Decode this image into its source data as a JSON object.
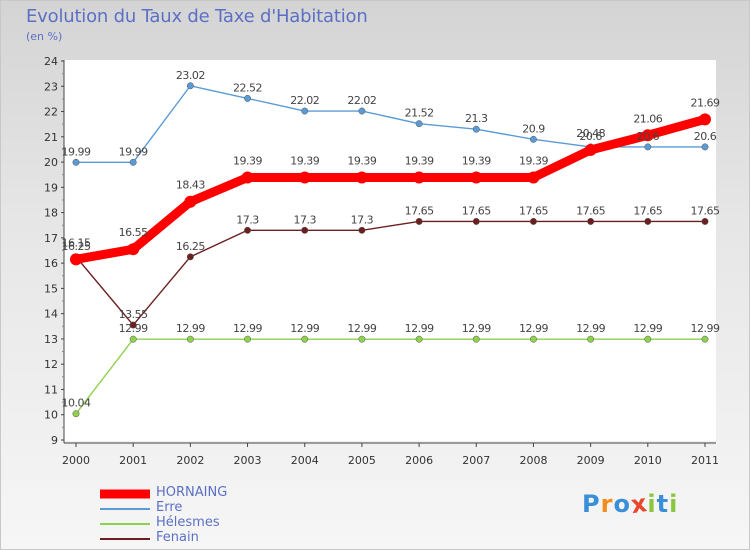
{
  "chart_data": {
    "type": "line",
    "title": "Evolution du Taux de Taxe d'Habitation",
    "ylabel": "(en %)",
    "xlabel": "",
    "x": [
      "2000",
      "2001",
      "2002",
      "2003",
      "2004",
      "2005",
      "2006",
      "2007",
      "2008",
      "2009",
      "2010",
      "2011"
    ],
    "ylim": [
      9,
      24
    ],
    "yticks": [
      "9",
      "10",
      "11",
      "12",
      "13",
      "14",
      "15",
      "16",
      "17",
      "18",
      "19",
      "20",
      "21",
      "22",
      "23",
      "24"
    ],
    "grid": false,
    "legend_position": "bottom-left",
    "series": [
      {
        "name": "HORNAING",
        "color": "#ff0000",
        "values": [
          16.15,
          16.55,
          18.43,
          19.39,
          19.39,
          19.39,
          19.39,
          19.39,
          19.39,
          20.48,
          21.06,
          21.69
        ],
        "labels": [
          "16.15",
          "16.55",
          "18.43",
          "19.39",
          "19.39",
          "19.39",
          "19.39",
          "19.39",
          "19.39",
          "20.48",
          "21.06",
          "21.69"
        ]
      },
      {
        "name": "Erre",
        "color": "#5b9bd5",
        "values": [
          19.99,
          19.99,
          23.02,
          22.52,
          22.02,
          22.02,
          21.52,
          21.3,
          20.9,
          20.6,
          20.6,
          20.6
        ],
        "labels": [
          "19.99",
          "19.99",
          "23.02",
          "22.52",
          "22.02",
          "22.02",
          "21.52",
          "21.3",
          "20.9",
          "20.6",
          "20.6",
          "20.6"
        ]
      },
      {
        "name": "Hélesmes",
        "color": "#8fd14f",
        "values": [
          10.04,
          12.99,
          12.99,
          12.99,
          12.99,
          12.99,
          12.99,
          12.99,
          12.99,
          12.99,
          12.99,
          12.99
        ],
        "labels": [
          "10.04",
          "12.99",
          "12.99",
          "12.99",
          "12.99",
          "12.99",
          "12.99",
          "12.99",
          "12.99",
          "12.99",
          "12.99",
          "12.99"
        ]
      },
      {
        "name": "Fenain",
        "color": "#6b1f1f",
        "values": [
          16.25,
          13.55,
          16.25,
          17.3,
          17.3,
          17.3,
          17.65,
          17.65,
          17.65,
          17.65,
          17.65,
          17.65
        ],
        "labels": [
          "16.25",
          "13.55",
          "16.25",
          "17.3",
          "17.3",
          "17.3",
          "17.65",
          "17.65",
          "17.65",
          "17.65",
          "17.65",
          "17.65"
        ]
      }
    ]
  },
  "logo": {
    "letters": [
      "P",
      "r",
      "o",
      "x",
      "i",
      "t",
      "i"
    ],
    "colors": [
      "#3a8fd8",
      "#f28c1b",
      "#3a8fd8",
      "#e8472b",
      "#8cc63f",
      "#3a8fd8",
      "#8cc63f"
    ]
  }
}
